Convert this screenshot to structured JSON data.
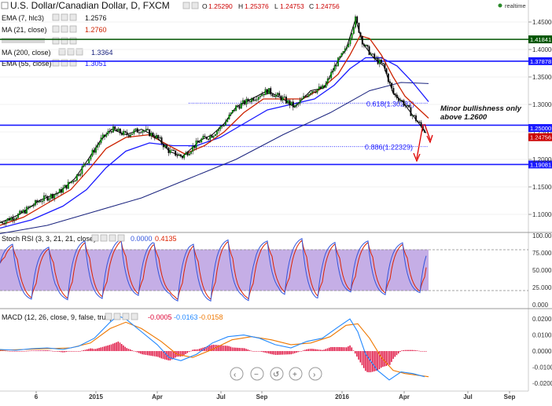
{
  "header": {
    "title": "U.S. Dollar/Canadian Dollar, D, FXCM",
    "ohlc": [
      {
        "label": "O",
        "value": "1.25290"
      },
      {
        "label": "H",
        "value": "1.25376"
      },
      {
        "label": "L",
        "value": "1.24753"
      },
      {
        "label": "C",
        "value": "1.24756"
      }
    ],
    "realtime_label": "realtime"
  },
  "indicators": [
    {
      "name": "EMA (7, hlc3)",
      "value": "1.2576",
      "color": "#000000"
    },
    {
      "name": "MA (21, close)",
      "value": "1.2760",
      "color": "#cc2200"
    },
    {
      "name": "MA (200, close)",
      "value": "1.3364",
      "color": "#1a237e"
    },
    {
      "name": "EMA (55, close)",
      "value": "1.3051",
      "color": "#1a1aff"
    }
  ],
  "colors": {
    "ema7": "#000000",
    "ma21": "#cc2200",
    "ma200": "#1a237e",
    "ema55": "#1a1aff",
    "candle_up": "#00aa00",
    "candle_down": "#000000",
    "resistance": "#1a1aff",
    "resistance_top": "#005500",
    "annotation_arrow": "#dd0000",
    "rsi_fill": "#c5aee6",
    "rsi_k": "#3355dd",
    "rsi_d": "#dd2200",
    "macd_line": "#2288ff",
    "macd_signal": "#ee7700",
    "macd_hist": "#dd0033"
  },
  "chart_data": [
    {
      "type": "candlestick",
      "title": "U.S. Dollar/Canadian Dollar, D, FXCM",
      "ylim": [
        1.07,
        1.47
      ],
      "y_ticks": [
        "1.45000",
        "1.40000",
        "1.35000",
        "1.30000",
        "1.25000",
        "1.20000",
        "1.15000",
        "1.10000"
      ],
      "x_ticks": [
        "6",
        "2015",
        "Apr",
        "Jul",
        "Sep",
        "2016",
        "Apr",
        "Jul",
        "Sep"
      ],
      "price_path": [
        [
          0,
          1.085
        ],
        [
          25,
          1.1
        ],
        [
          50,
          1.125
        ],
        [
          75,
          1.14
        ],
        [
          95,
          1.165
        ],
        [
          112,
          1.2
        ],
        [
          128,
          1.235
        ],
        [
          142,
          1.255
        ],
        [
          160,
          1.245
        ],
        [
          180,
          1.255
        ],
        [
          200,
          1.24
        ],
        [
          215,
          1.215
        ],
        [
          232,
          1.205
        ],
        [
          255,
          1.235
        ],
        [
          270,
          1.245
        ],
        [
          285,
          1.265
        ],
        [
          300,
          1.295
        ],
        [
          320,
          1.31
        ],
        [
          340,
          1.325
        ],
        [
          360,
          1.31
        ],
        [
          375,
          1.295
        ],
        [
          395,
          1.325
        ],
        [
          412,
          1.33
        ],
        [
          428,
          1.375
        ],
        [
          440,
          1.4
        ],
        [
          452,
          1.455
        ],
        [
          462,
          1.41
        ],
        [
          475,
          1.385
        ],
        [
          488,
          1.37
        ],
        [
          500,
          1.32
        ],
        [
          512,
          1.305
        ],
        [
          525,
          1.28
        ],
        [
          542,
          1.248
        ]
      ],
      "ema7_path": [
        [
          0,
          1.085
        ],
        [
          25,
          1.1
        ],
        [
          50,
          1.125
        ],
        [
          75,
          1.14
        ],
        [
          95,
          1.165
        ],
        [
          112,
          1.2
        ],
        [
          128,
          1.235
        ],
        [
          142,
          1.255
        ],
        [
          160,
          1.245
        ],
        [
          180,
          1.255
        ],
        [
          200,
          1.24
        ],
        [
          215,
          1.215
        ],
        [
          232,
          1.205
        ],
        [
          255,
          1.235
        ],
        [
          270,
          1.245
        ],
        [
          285,
          1.265
        ],
        [
          300,
          1.295
        ],
        [
          320,
          1.31
        ],
        [
          340,
          1.325
        ],
        [
          360,
          1.31
        ],
        [
          375,
          1.295
        ],
        [
          395,
          1.325
        ],
        [
          412,
          1.33
        ],
        [
          428,
          1.375
        ],
        [
          440,
          1.4
        ],
        [
          452,
          1.455
        ],
        [
          462,
          1.41
        ],
        [
          475,
          1.385
        ],
        [
          488,
          1.37
        ],
        [
          500,
          1.32
        ],
        [
          512,
          1.305
        ],
        [
          525,
          1.28
        ],
        [
          542,
          1.248
        ]
      ],
      "ma21_path": [
        [
          0,
          1.08
        ],
        [
          30,
          1.095
        ],
        [
          60,
          1.12
        ],
        [
          90,
          1.145
        ],
        [
          115,
          1.185
        ],
        [
          135,
          1.22
        ],
        [
          160,
          1.24
        ],
        [
          190,
          1.245
        ],
        [
          215,
          1.225
        ],
        [
          235,
          1.21
        ],
        [
          260,
          1.225
        ],
        [
          285,
          1.25
        ],
        [
          310,
          1.285
        ],
        [
          335,
          1.31
        ],
        [
          360,
          1.31
        ],
        [
          385,
          1.31
        ],
        [
          410,
          1.33
        ],
        [
          430,
          1.355
        ],
        [
          445,
          1.39
        ],
        [
          458,
          1.425
        ],
        [
          470,
          1.42
        ],
        [
          485,
          1.39
        ],
        [
          500,
          1.35
        ],
        [
          515,
          1.315
        ],
        [
          530,
          1.295
        ],
        [
          545,
          1.275
        ]
      ],
      "ema55_path": [
        [
          0,
          1.075
        ],
        [
          40,
          1.09
        ],
        [
          80,
          1.115
        ],
        [
          110,
          1.145
        ],
        [
          135,
          1.185
        ],
        [
          160,
          1.215
        ],
        [
          190,
          1.23
        ],
        [
          220,
          1.225
        ],
        [
          250,
          1.225
        ],
        [
          280,
          1.24
        ],
        [
          310,
          1.265
        ],
        [
          340,
          1.29
        ],
        [
          370,
          1.3
        ],
        [
          400,
          1.31
        ],
        [
          425,
          1.335
        ],
        [
          445,
          1.365
        ],
        [
          465,
          1.385
        ],
        [
          485,
          1.385
        ],
        [
          505,
          1.37
        ],
        [
          525,
          1.34
        ],
        [
          545,
          1.305
        ]
      ],
      "ma200_path": [
        [
          0,
          1.065
        ],
        [
          60,
          1.08
        ],
        [
          120,
          1.105
        ],
        [
          180,
          1.13
        ],
        [
          240,
          1.165
        ],
        [
          300,
          1.2
        ],
        [
          360,
          1.245
        ],
        [
          420,
          1.285
        ],
        [
          470,
          1.325
        ],
        [
          510,
          1.34
        ],
        [
          545,
          1.338
        ]
      ],
      "horizontal_levels": [
        {
          "value": 1.4184,
          "label": "1.41841",
          "style": "solid",
          "color": "#005500"
        },
        {
          "value": 1.3787,
          "label": "1.37878",
          "style": "solid",
          "color": "#1a1aff"
        },
        {
          "value": 1.2623,
          "label": "",
          "style": "solid",
          "color": "#1a1aff"
        },
        {
          "value": 1.1908,
          "label": "1.19081",
          "style": "solid",
          "color": "#1a1aff"
        }
      ],
      "fib_levels": [
        {
          "value": 1.3024,
          "label": "0.618(1.30237)"
        },
        {
          "value": 1.2233,
          "label": "0.886(1.22329)"
        }
      ],
      "price_badges": [
        {
          "value": 1.25,
          "label": "1.25000",
          "bg": "#1a1aff"
        },
        {
          "value": 1.2476,
          "label": "1.24756",
          "bg": "#cc0000"
        }
      ],
      "annotation": [
        "Minor bullishness only",
        "above 1.2600"
      ]
    },
    {
      "type": "line",
      "title": "Stoch RSI (3, 3, 21, 21, close)",
      "values_label": [
        "0.0000",
        "0.4135"
      ],
      "ylim": [
        0,
        100
      ],
      "y_ticks": [
        "100.00",
        "75.000",
        "50.000",
        "25.000",
        "0.000"
      ],
      "band": [
        20,
        80
      ]
    },
    {
      "type": "line",
      "title": "MACD (12, 26, close, 9, false, true)",
      "values_label": [
        "-0.0005",
        "-0.0163",
        "-0.0158"
      ],
      "ylim": [
        -0.022,
        0.024
      ],
      "y_ticks": [
        "0.0200",
        "0.0100",
        "0.0000",
        "-0.0100",
        "-0.0200"
      ],
      "macd_path": [
        [
          0,
          0.001
        ],
        [
          20,
          0.0005
        ],
        [
          40,
          0.0015
        ],
        [
          60,
          0.002
        ],
        [
          80,
          0.001
        ],
        [
          100,
          0.003
        ],
        [
          120,
          0.008
        ],
        [
          140,
          0.018
        ],
        [
          150,
          0.022
        ],
        [
          160,
          0.02
        ],
        [
          180,
          0.012
        ],
        [
          200,
          0.004
        ],
        [
          215,
          -0.004
        ],
        [
          230,
          -0.006
        ],
        [
          250,
          -0.002
        ],
        [
          270,
          0.005
        ],
        [
          290,
          0.009
        ],
        [
          310,
          0.01
        ],
        [
          330,
          0.008
        ],
        [
          350,
          0.004
        ],
        [
          370,
          0.002
        ],
        [
          390,
          0.006
        ],
        [
          410,
          0.008
        ],
        [
          430,
          0.015
        ],
        [
          445,
          0.02
        ],
        [
          455,
          0.012
        ],
        [
          465,
          -0.002
        ],
        [
          480,
          -0.012
        ],
        [
          495,
          -0.018
        ],
        [
          510,
          -0.013
        ],
        [
          525,
          -0.014
        ],
        [
          540,
          -0.016
        ]
      ],
      "signal_path": [
        [
          0,
          0.0005
        ],
        [
          30,
          0.001
        ],
        [
          60,
          0.0015
        ],
        [
          90,
          0.002
        ],
        [
          115,
          0.005
        ],
        [
          140,
          0.014
        ],
        [
          160,
          0.018
        ],
        [
          180,
          0.014
        ],
        [
          205,
          0.006
        ],
        [
          225,
          -0.002
        ],
        [
          245,
          -0.004
        ],
        [
          270,
          0.001
        ],
        [
          295,
          0.007
        ],
        [
          320,
          0.009
        ],
        [
          345,
          0.007
        ],
        [
          370,
          0.004
        ],
        [
          395,
          0.005
        ],
        [
          420,
          0.009
        ],
        [
          440,
          0.016
        ],
        [
          455,
          0.017
        ],
        [
          470,
          0.008
        ],
        [
          485,
          -0.004
        ],
        [
          500,
          -0.012
        ],
        [
          515,
          -0.014
        ],
        [
          530,
          -0.015
        ],
        [
          545,
          -0.016
        ]
      ]
    }
  ]
}
